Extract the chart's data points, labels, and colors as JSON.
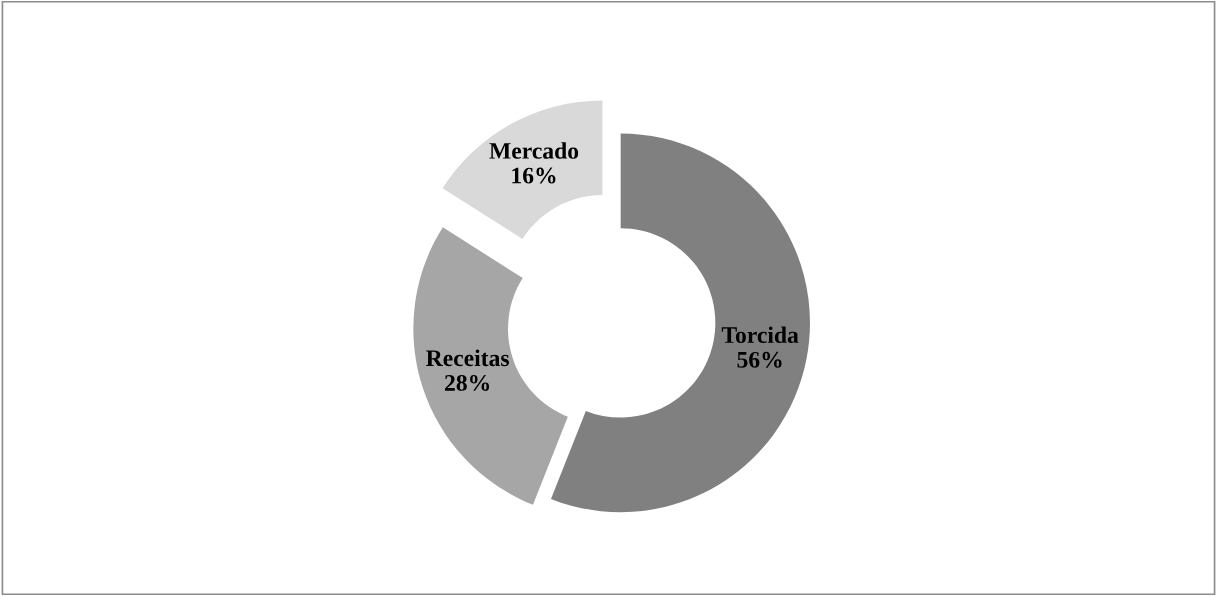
{
  "chart_data": {
    "type": "donut",
    "categories": [
      "Torcida",
      "Receitas",
      "Mercado"
    ],
    "values": [
      56,
      28,
      16
    ],
    "colors": [
      "#808080",
      "#a6a6a6",
      "#d9d9d9"
    ],
    "value_labels": [
      "56%",
      "28%",
      "16%"
    ],
    "legend": false
  }
}
